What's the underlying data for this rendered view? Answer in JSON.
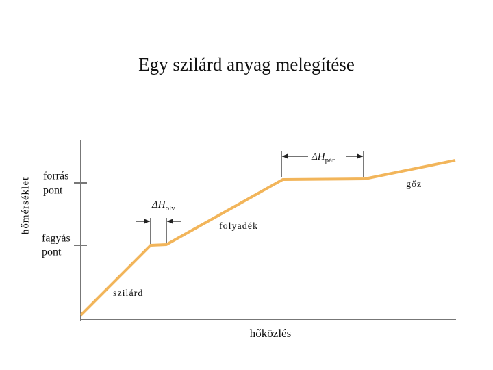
{
  "title": "Egy szilárd anyag melegítése",
  "axes": {
    "y_label": "hőmérséklet",
    "x_label": "hőközlés"
  },
  "levels": [
    {
      "lines": [
        "forrás",
        "pont"
      ]
    },
    {
      "lines": [
        "fagyás",
        "pont"
      ]
    }
  ],
  "annotations": {
    "vaporization": {
      "symbol": "ΔH",
      "subscript": "pár"
    },
    "melting": {
      "symbol": "ΔH",
      "subscript": "olv"
    }
  },
  "phases": [
    "szilárd",
    "folyadék",
    "gőz"
  ]
}
